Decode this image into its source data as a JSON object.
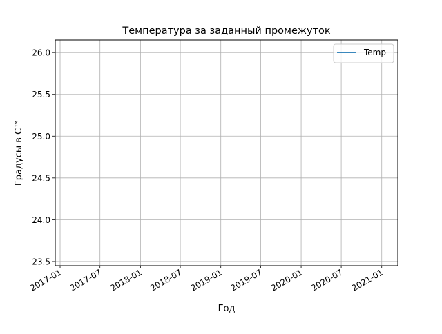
{
  "chart_data": {
    "type": "line",
    "title": "Температура за заданный промежуток",
    "xlabel": "Год",
    "ylabel": "Градусы в С™",
    "x_ticks": [
      "2017-01",
      "2017-07",
      "2018-01",
      "2018-07",
      "2019-01",
      "2019-07",
      "2020-01",
      "2020-07",
      "2021-01"
    ],
    "y_ticks": [
      "23.5",
      "24.0",
      "24.5",
      "25.0",
      "25.5",
      "26.0"
    ],
    "xlim": [
      "2016-12-10",
      "2021-03-15"
    ],
    "ylim": [
      23.45,
      26.15
    ],
    "grid": true,
    "legend_position": "top-right",
    "series": [
      {
        "name": "Temp",
        "color": "#1f77b4",
        "x": [],
        "y": []
      }
    ]
  }
}
